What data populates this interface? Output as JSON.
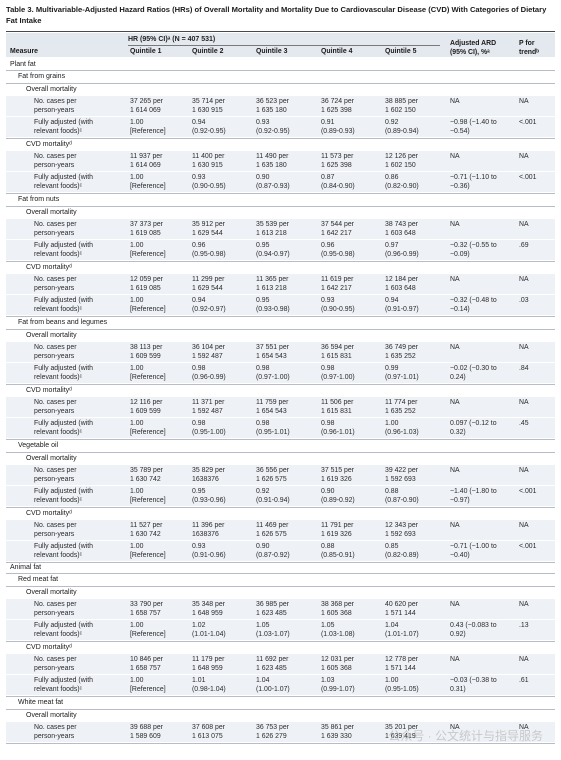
{
  "caption": "Table 3. Multivariable-Adjusted Hazard Ratios (HRs) of Overall Mortality and Mortality Due to Cardiovascular Disease (CVD) With Categories of Dietary Fat Intake",
  "header": {
    "measure": "Measure",
    "hr_span": "HR (95% CI)ᵃ (N = 407 531)",
    "quintiles": [
      "Quintile 1",
      "Quintile 2",
      "Quintile 3",
      "Quintile 4",
      "Quintile 5"
    ],
    "ard": "Adjusted ARD\n(95% CI), %ᵃ",
    "p": "P for\ntrendᵇ"
  },
  "rows": [
    {
      "kind": "group",
      "label": "Plant fat"
    },
    {
      "kind": "food",
      "label": "Fat from grains"
    },
    {
      "kind": "outcome",
      "label": "Overall mortality"
    },
    {
      "kind": "data",
      "label": "No. cases per\nperson-years",
      "q": [
        "37 265 per\n1 614 069",
        "35 714 per\n1 630 915",
        "36 523 per\n1 635 180",
        "36 724 per\n1 625 398",
        "38 885 per\n1 602 150"
      ],
      "ard": "NA",
      "p": "NA"
    },
    {
      "kind": "data",
      "label": "Fully adjusted (with\nrelevant foods)ᶜ",
      "q": [
        "1.00\n[Reference]",
        "0.94\n(0.92-0.95)",
        "0.93\n(0.92-0.95)",
        "0.91\n(0.89-0.93)",
        "0.92\n(0.89-0.94)"
      ],
      "ard": "−0.98 (−1.40 to\n−0.54)",
      "p": "<.001"
    },
    {
      "kind": "outcome",
      "label": "CVD mortalityᵈ"
    },
    {
      "kind": "data",
      "label": "No. cases per\nperson-years",
      "q": [
        "11 937 per\n1 614 069",
        "11 400 per\n1 630 915",
        "11 490 per\n1 635 180",
        "11 573 per\n1 625 398",
        "12 126 per\n1 602 150"
      ],
      "ard": "NA",
      "p": "NA"
    },
    {
      "kind": "data",
      "label": "Fully adjusted (with\nrelevant foods)ᶜ",
      "q": [
        "1.00\n[Reference]",
        "0.93\n(0.90-0.95)",
        "0.90\n(0.87-0.93)",
        "0.87\n(0.84-0.90)",
        "0.86\n(0.82-0.90)"
      ],
      "ard": "−0.71 (−1.10 to\n−0.36)",
      "p": "<.001"
    },
    {
      "kind": "food",
      "label": "Fat from nuts"
    },
    {
      "kind": "outcome",
      "label": "Overall mortality"
    },
    {
      "kind": "data",
      "label": "No. cases per\nperson-years",
      "q": [
        "37 373 per\n1 619 085",
        "35 912 per\n1 629 544",
        "35 539 per\n1 613 218",
        "37 544 per\n1 642 217",
        "38 743 per\n1 603 648"
      ],
      "ard": "NA",
      "p": "NA"
    },
    {
      "kind": "data",
      "label": "Fully adjusted (with\nrelevant foods)ᶜ",
      "q": [
        "1.00\n[Reference]",
        "0.96\n(0.95-0.98)",
        "0.95\n(0.94-0.97)",
        "0.96\n(0.95-0.98)",
        "0.97\n(0.96-0.99)"
      ],
      "ard": "−0.32 (−0.55 to\n−0.09)",
      "p": ".69"
    },
    {
      "kind": "outcome",
      "label": "CVD mortalityᵈ"
    },
    {
      "kind": "data",
      "label": "No. cases per\nperson-years",
      "q": [
        "12 059 per\n1 619 085",
        "11 299 per\n1 629 544",
        "11 365 per\n1 613 218",
        "11 619 per\n1 642 217",
        "12 184 per\n1 603 648"
      ],
      "ard": "NA",
      "p": "NA"
    },
    {
      "kind": "data",
      "label": "Fully adjusted (with\nrelevant foods)ᶜ",
      "q": [
        "1.00\n[Reference]",
        "0.94\n(0.92-0.97)",
        "0.95\n(0.93-0.98)",
        "0.93\n(0.90-0.95)",
        "0.94\n(0.91-0.97)"
      ],
      "ard": "−0.32 (−0.48 to\n−0.14)",
      "p": ".03"
    },
    {
      "kind": "food",
      "label": "Fat from beans and legumes"
    },
    {
      "kind": "outcome",
      "label": "Overall mortality"
    },
    {
      "kind": "data",
      "label": "No. cases per\nperson-years",
      "q": [
        "38 113 per\n1 609 599",
        "36 104 per\n1 592 487",
        "37 551 per\n1 654 543",
        "36 594 per\n1 615 831",
        "36 749 per\n1 635 252"
      ],
      "ard": "NA",
      "p": "NA"
    },
    {
      "kind": "data",
      "label": "Fully adjusted (with\nrelevant foods)ᶜ",
      "q": [
        "1.00\n[Reference]",
        "0.98\n(0.96-0.99)",
        "0.98\n(0.97-1.00)",
        "0.98\n(0.97-1.00)",
        "0.99\n(0.97-1.01)"
      ],
      "ard": "−0.02 (−0.30 to\n0.24)",
      "p": ".84"
    },
    {
      "kind": "outcome",
      "label": "CVD mortalityᵈ"
    },
    {
      "kind": "data",
      "label": "No. cases per\nperson-years",
      "q": [
        "12 116 per\n1 609 599",
        "11 371 per\n1 592 487",
        "11 759 per\n1 654 543",
        "11 506 per\n1 615 831",
        "11 774 per\n1 635 252"
      ],
      "ard": "NA",
      "p": "NA"
    },
    {
      "kind": "data",
      "label": "Fully adjusted (with\nrelevant foods)ᶜ",
      "q": [
        "1.00\n[Reference]",
        "0.98\n(0.95-1.00)",
        "0.98\n(0.95-1.01)",
        "0.98\n(0.96-1.01)",
        "1.00\n(0.96-1.03)"
      ],
      "ard": "0.097 (−0.12 to\n0.32)",
      "p": ".45"
    },
    {
      "kind": "food",
      "label": "Vegetable oil"
    },
    {
      "kind": "outcome",
      "label": "Overall mortality"
    },
    {
      "kind": "data",
      "label": "No. cases per\nperson-years",
      "q": [
        "35 789 per\n1 630 742",
        "35 829 per\n1638376",
        "36 556 per\n1 626 575",
        "37 515 per\n1 619 326",
        "39 422 per\n1 592 693"
      ],
      "ard": "NA",
      "p": "NA"
    },
    {
      "kind": "data",
      "label": "Fully adjusted (with\nrelevant foods)ᶜ",
      "q": [
        "1.00\n[Reference]",
        "0.95\n(0.93-0.96)",
        "0.92\n(0.91-0.94)",
        "0.90\n(0.89-0.92)",
        "0.88\n(0.87-0.90)"
      ],
      "ard": "−1.40 (−1.80 to\n−0.97)",
      "p": "<.001"
    },
    {
      "kind": "outcome",
      "label": "CVD mortalityᵈ"
    },
    {
      "kind": "data",
      "label": "No. cases per\nperson-years",
      "q": [
        "11 527 per\n1 630 742",
        "11 396 per\n1638376",
        "11 469 per\n1 626 575",
        "11 791 per\n1 619 326",
        "12 343 per\n1 592 693"
      ],
      "ard": "NA",
      "p": "NA"
    },
    {
      "kind": "data",
      "label": "Fully adjusted (with\nrelevant foods)ᶜ",
      "q": [
        "1.00\n[Reference]",
        "0.93\n(0.91-0.96)",
        "0.90\n(0.87-0.92)",
        "0.88\n(0.85-0.91)",
        "0.85\n(0.82-0.89)"
      ],
      "ard": "−0.71 (−1.00 to\n−0.40)",
      "p": "<.001"
    },
    {
      "kind": "group",
      "label": "Animal fat"
    },
    {
      "kind": "food",
      "label": "Red meat fat"
    },
    {
      "kind": "outcome",
      "label": "Overall mortality"
    },
    {
      "kind": "data",
      "label": "No. cases per\nperson-years",
      "q": [
        "33 790 per\n1 658 757",
        "35 348 per\n1 648 959",
        "36 985 per\n1 623 485",
        "38 368 per\n1 605 368",
        "40 620 per\n1 571 144"
      ],
      "ard": "NA",
      "p": "NA"
    },
    {
      "kind": "data",
      "label": "Fully adjusted (with\nrelevant foods)ᶜ",
      "q": [
        "1.00\n[Reference]",
        "1.02\n(1.01-1.04)",
        "1.05\n(1.03-1.07)",
        "1.05\n(1.03-1.08)",
        "1.04\n(1.01-1.07)"
      ],
      "ard": "0.43 (−0.083 to\n0.92)",
      "p": ".13"
    },
    {
      "kind": "outcome",
      "label": "CVD mortalityᵈ"
    },
    {
      "kind": "data",
      "label": "No. cases per\nperson-years",
      "q": [
        "10 846 per\n1 658 757",
        "11 179 per\n1 648 959",
        "11 692 per\n1 623 485",
        "12 031 per\n1 605 368",
        "12 778 per\n1 571 144"
      ],
      "ard": "NA",
      "p": "NA"
    },
    {
      "kind": "data",
      "label": "Fully adjusted (with\nrelevant foods)ᶜ",
      "q": [
        "1.00\n[Reference]",
        "1.01\n(0.98-1.04)",
        "1.04\n(1.00-1.07)",
        "1.03\n(0.99-1.07)",
        "1.00\n(0.95-1.05)"
      ],
      "ard": "−0.03 (−0.38 to\n0.31)",
      "p": ".61"
    },
    {
      "kind": "food",
      "label": "White meat fat"
    },
    {
      "kind": "outcome",
      "label": "Overall mortality"
    },
    {
      "kind": "data",
      "label": "No. cases per\nperson-years",
      "q": [
        "39 688 per\n1 589 609",
        "37 608 per\n1 613 075",
        "36 753 per\n1 626 279",
        "35 861 per\n1 639 330",
        "35 201 per\n1 639 419"
      ],
      "ard": "NA",
      "p": "NA"
    }
  ],
  "watermark": "公众号 · 公文统计与指导服务"
}
